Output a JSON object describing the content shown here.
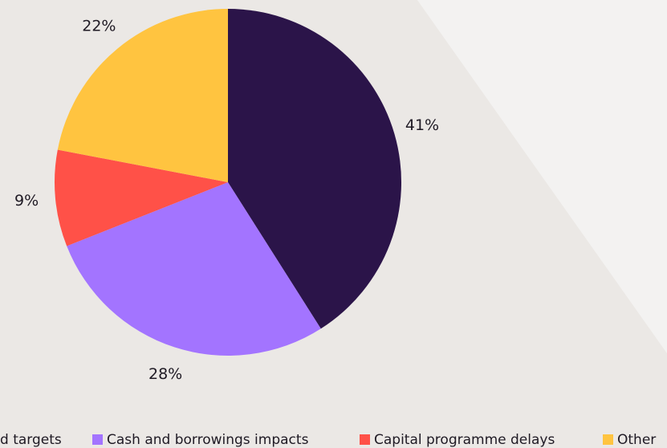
{
  "chart_data": {
    "type": "pie",
    "categories": [
      "d targets",
      "Cash and borrowings impacts",
      "Capital programme delays",
      "Other"
    ],
    "values": [
      41,
      28,
      9,
      22
    ],
    "value_labels": [
      "41%",
      "28%",
      "9%",
      "22%"
    ],
    "colors": [
      "#2b1449",
      "#a374ff",
      "#ff5148",
      "#ffc440"
    ]
  }
}
